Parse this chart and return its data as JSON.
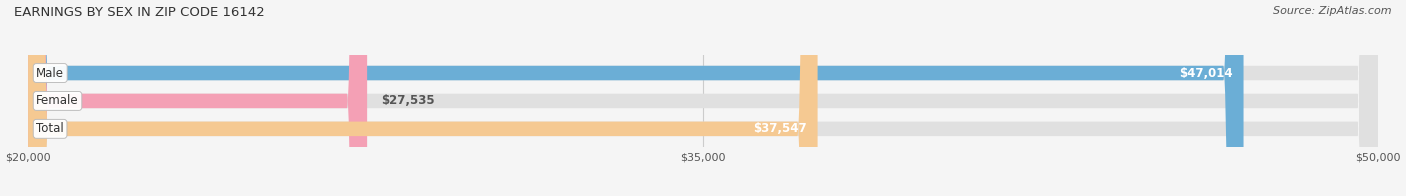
{
  "title": "EARNINGS BY SEX IN ZIP CODE 16142",
  "source": "Source: ZipAtlas.com",
  "categories": [
    "Male",
    "Female",
    "Total"
  ],
  "values": [
    47014,
    27535,
    37547
  ],
  "bar_colors": [
    "#6baed6",
    "#f4a0b5",
    "#f5c992"
  ],
  "bar_bg_color": "#e0e0e0",
  "value_labels": [
    "$47,014",
    "$27,535",
    "$37,547"
  ],
  "xmin": 20000,
  "xmax": 50000,
  "xticks": [
    20000,
    35000,
    50000
  ],
  "xtick_labels": [
    "$20,000",
    "$35,000",
    "$50,000"
  ],
  "figwidth": 14.06,
  "figheight": 1.96,
  "dpi": 100,
  "title_fontsize": 9.5,
  "source_fontsize": 8,
  "label_fontsize": 8.5,
  "value_fontsize": 8.5,
  "bar_height": 0.52,
  "title_color": "#333333",
  "source_color": "#555555",
  "label_bg_color": "#ffffff",
  "label_text_color": "#333333",
  "value_text_color": "#ffffff",
  "value_text_color_outside": "#555555",
  "grid_color": "#cccccc",
  "fig_bg_color": "#f5f5f5"
}
